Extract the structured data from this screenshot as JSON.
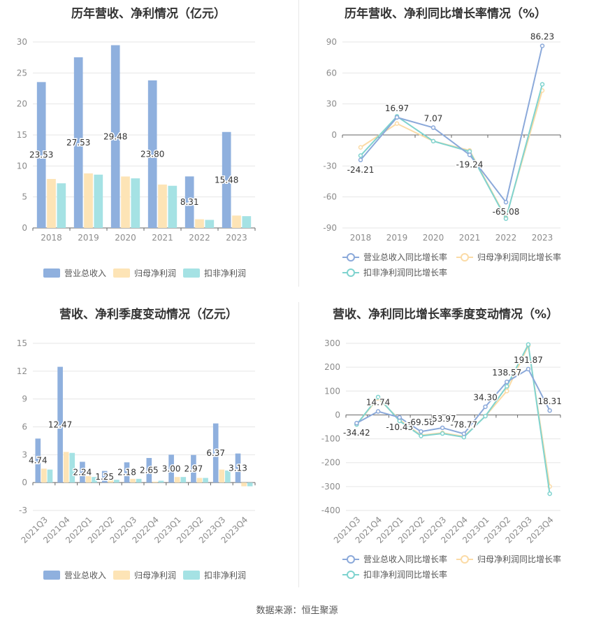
{
  "source": "数据来源：恒生聚源",
  "colors": {
    "revenue": "#8fb0de",
    "parent_profit": "#fde4b6",
    "deducted_profit": "#a5e2e4",
    "revenue_line": "#8ba9da",
    "parent_line": "#fbdba6",
    "deducted_line": "#7fd3cf",
    "axis": "#666666",
    "grid": "#e6e6e6",
    "tick_text": "#8c8c8c"
  },
  "chart_data": [
    {
      "id": "annual-bars",
      "type": "bar",
      "title": "历年营收、净利情况（亿元）",
      "categories": [
        "2018",
        "2019",
        "2020",
        "2021",
        "2022",
        "2023"
      ],
      "series": [
        {
          "name": "营业总收入",
          "values": [
            23.53,
            27.53,
            29.48,
            23.8,
            8.31,
            15.48
          ],
          "labels": [
            "23.53",
            "27.53",
            "29.48",
            "23.80",
            "8.31",
            "15.48"
          ]
        },
        {
          "name": "归母净利润",
          "values": [
            7.9,
            8.8,
            8.3,
            7.0,
            1.4,
            2.0
          ]
        },
        {
          "name": "扣非净利润",
          "values": [
            7.2,
            8.6,
            8.0,
            6.8,
            1.3,
            1.9
          ]
        }
      ],
      "y_ticks": [
        0,
        5,
        10,
        15,
        20,
        25,
        30
      ],
      "ylim": [
        0,
        30
      ],
      "legend": "bottom",
      "grid": true
    },
    {
      "id": "annual-growth",
      "type": "line",
      "title": "历年营收、净利同比增长率情况（%）",
      "categories": [
        "2018",
        "2019",
        "2020",
        "2021",
        "2022",
        "2023"
      ],
      "series": [
        {
          "name": "营业总收入同比增长率",
          "values": [
            -24.21,
            16.97,
            7.07,
            -19.24,
            -65.08,
            86.23
          ],
          "labels": [
            "-24.21",
            "16.97",
            "7.07",
            "-19.24",
            "-65.08",
            "86.23"
          ]
        },
        {
          "name": "归母净利润同比增长率",
          "values": [
            -12,
            11,
            -6,
            -15,
            -80,
            43
          ]
        },
        {
          "name": "扣非净利润同比增长率",
          "values": [
            -20,
            18,
            -6,
            -16,
            -81,
            49
          ]
        }
      ],
      "y_ticks": [
        -90,
        -60,
        -30,
        0,
        30,
        60,
        90
      ],
      "ylim": [
        -90,
        90
      ],
      "legend": "bottom",
      "grid": true
    },
    {
      "id": "quarterly-bars",
      "type": "bar",
      "title": "营收、净利季度变动情况（亿元）",
      "categories": [
        "2021Q3",
        "2021Q4",
        "2022Q1",
        "2022Q2",
        "2022Q3",
        "2022Q4",
        "2023Q1",
        "2023Q2",
        "2023Q3",
        "2023Q4"
      ],
      "series": [
        {
          "name": "营业总收入",
          "values": [
            4.74,
            12.47,
            2.24,
            1.25,
            2.18,
            2.65,
            3.0,
            2.97,
            6.37,
            3.13
          ],
          "labels": [
            "4.74",
            "12.47",
            "2.24",
            "1.25",
            "2.18",
            "2.65",
            "3.00",
            "2.97",
            "6.37",
            "3.13"
          ]
        },
        {
          "name": "归母净利润",
          "values": [
            1.5,
            3.3,
            0.7,
            0.3,
            0.4,
            0.1,
            0.6,
            0.5,
            1.4,
            -0.4
          ]
        },
        {
          "name": "扣非净利润",
          "values": [
            1.4,
            3.2,
            0.6,
            0.3,
            0.4,
            0.2,
            0.6,
            0.5,
            1.3,
            -0.4
          ]
        }
      ],
      "y_ticks": [
        -3,
        0,
        3,
        6,
        9,
        12,
        15
      ],
      "ylim": [
        -3,
        15
      ],
      "legend": "bottom",
      "grid": true
    },
    {
      "id": "quarterly-growth",
      "type": "line",
      "title": "营收、净利同比增长率季度变动情况（%）",
      "categories": [
        "2021Q3",
        "2021Q4",
        "2022Q1",
        "2022Q2",
        "2022Q3",
        "2022Q4",
        "2023Q1",
        "2023Q2",
        "2023Q3",
        "2023Q4"
      ],
      "series": [
        {
          "name": "营业总收入同比增长率",
          "values": [
            -34.42,
            14.74,
            -10.43,
            -69.58,
            -53.97,
            -78.77,
            34.3,
            138.57,
            191.87,
            18.31
          ],
          "labels": [
            "-34.42",
            "14.74",
            "-10.43",
            "-69.58",
            "-53.97",
            "-78.77",
            "34.30",
            "138.57",
            "191.87",
            "18.31"
          ]
        },
        {
          "name": "归母净利润同比增长率",
          "values": [
            -40,
            70,
            -20,
            -85,
            -75,
            -90,
            -5,
            100,
            290,
            -300
          ]
        },
        {
          "name": "扣非净利润同比增长率",
          "values": [
            -40,
            75,
            -25,
            -88,
            -78,
            -93,
            -5,
            120,
            295,
            -330
          ]
        }
      ],
      "y_ticks": [
        -400,
        -300,
        -200,
        -100,
        0,
        100,
        200,
        300
      ],
      "ylim": [
        -400,
        300
      ],
      "legend": "bottom",
      "grid": true
    }
  ]
}
